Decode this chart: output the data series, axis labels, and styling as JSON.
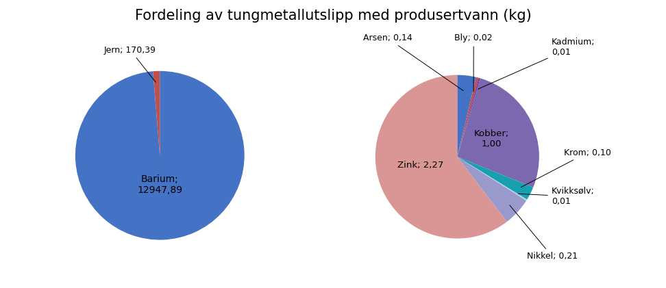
{
  "title": "Fordeling av tungmetallutslipp med produsertvann (kg)",
  "title_fontsize": 15,
  "bg": "#ffffff",
  "p1_names": [
    "Barium",
    "Jern"
  ],
  "p1_vals": [
    12947.89,
    170.39
  ],
  "p1_colors": [
    "#4472C4",
    "#C0504D"
  ],
  "p2_names": [
    "Arsen",
    "Bly",
    "Kadmium",
    "Kobber",
    "Krom",
    "Kvikksølv",
    "Nikkel",
    "Zink"
  ],
  "p2_vals": [
    0.14,
    0.02,
    0.01,
    1.0,
    0.1,
    0.01,
    0.21,
    2.27
  ],
  "p2_colors": [
    "#4472C4",
    "#C0504D",
    "#7030A0",
    "#7B68AE",
    "#17A0B0",
    "#B8CCE4",
    "#9999CC",
    "#DA9694"
  ]
}
